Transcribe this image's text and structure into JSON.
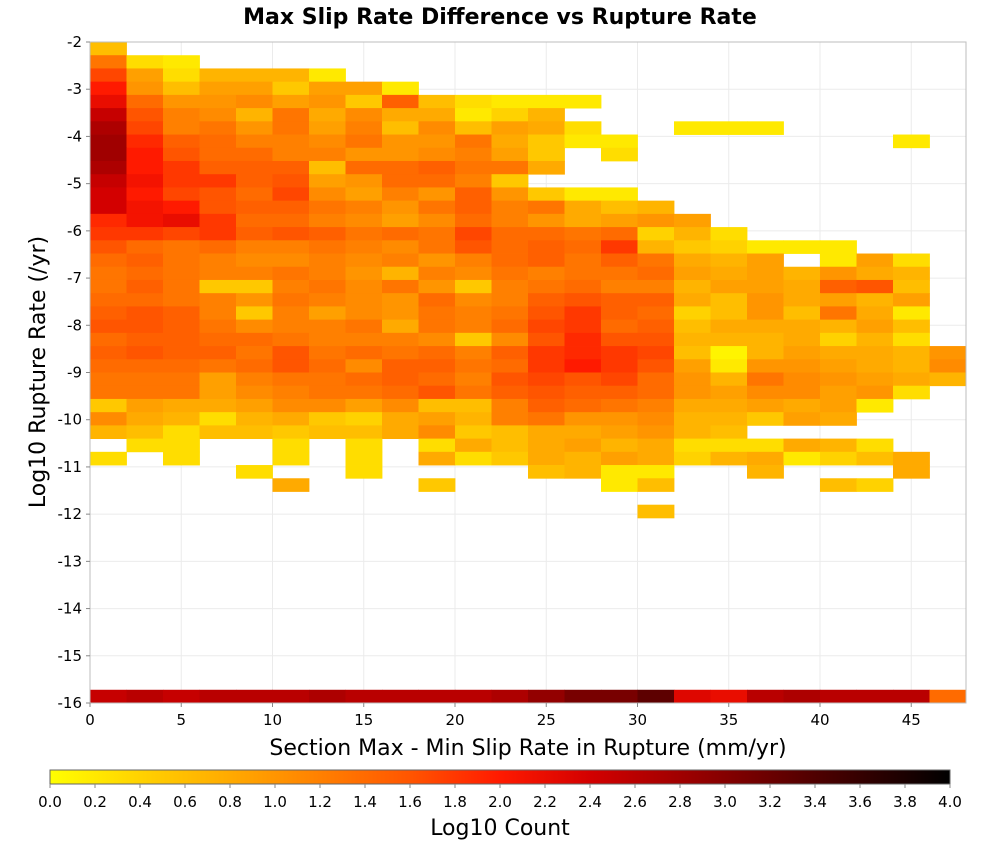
{
  "chart_data": {
    "type": "heatmap",
    "title": "Max Slip Rate Difference vs Rupture Rate",
    "xlabel": "Section Max - Min Slip Rate in Rupture (mm/yr)",
    "ylabel": "Log10 Rupture Rate (/yr)",
    "xlim": [
      0,
      48
    ],
    "ylim": [
      -16,
      -2
    ],
    "xticks": [
      0,
      5,
      10,
      15,
      20,
      25,
      30,
      35,
      40,
      45
    ],
    "yticks": [
      -2,
      -3,
      -4,
      -5,
      -6,
      -7,
      -8,
      -9,
      -10,
      -11,
      -12,
      -13,
      -14,
      -15,
      -16
    ],
    "x_bin_width": 2,
    "y_bin_width": 0.28,
    "y_bin_start": -2,
    "grid": true,
    "colorbar": {
      "label": "Log10 Count",
      "min": 0,
      "max": 4,
      "ticks": [
        "0.0",
        "0.2",
        "0.4",
        "0.6",
        "0.8",
        "1.0",
        "1.2",
        "1.4",
        "1.6",
        "1.8",
        "2.0",
        "2.2",
        "2.4",
        "2.6",
        "2.8",
        "3.0",
        "3.2",
        "3.4",
        "3.6",
        "3.8",
        "4.0"
      ],
      "colormap": "hot-reversed",
      "position": "bottom"
    },
    "rows": [
      [
        0.6
      ],
      [
        1.3,
        0.3,
        0.2
      ],
      [
        1.7,
        0.9,
        0.3,
        0.7,
        0.7,
        0.7,
        0.2
      ],
      [
        2.0,
        1.0,
        0.6,
        0.9,
        0.9,
        0.5,
        0.9,
        0.9,
        0.2
      ],
      [
        2.2,
        1.4,
        1.0,
        1.0,
        1.1,
        0.9,
        1.0,
        0.5,
        1.5,
        0.6,
        0.3,
        0.2,
        0.2,
        0.2
      ],
      [
        2.5,
        1.6,
        1.2,
        1.1,
        0.7,
        1.3,
        0.8,
        1.1,
        0.8,
        0.8,
        0.2,
        0.4,
        0.7
      ],
      [
        2.7,
        1.7,
        1.2,
        1.3,
        1.0,
        1.3,
        0.9,
        1.2,
        0.6,
        1.1,
        0.6,
        0.9,
        0.8,
        0.3,
        0.0,
        0,
        0.2,
        0.2,
        0.2
      ],
      [
        2.8,
        1.9,
        1.5,
        1.4,
        1.2,
        1.2,
        1.1,
        1.3,
        1.0,
        1.0,
        1.3,
        0.8,
        0.5,
        0.2,
        0.2,
        0,
        0,
        0,
        0,
        0,
        0,
        0,
        0.2
      ],
      [
        2.8,
        2.0,
        1.6,
        1.4,
        1.4,
        1.2,
        1.2,
        1.0,
        1.0,
        1.1,
        1.2,
        0.9,
        0.5,
        0.0,
        0.3
      ],
      [
        2.7,
        2.0,
        1.8,
        1.5,
        1.5,
        1.5,
        0.6,
        1.4,
        1.4,
        1.5,
        1.3,
        1.3,
        0.8
      ],
      [
        2.5,
        2.1,
        1.8,
        1.8,
        1.5,
        1.6,
        0.9,
        1.0,
        1.4,
        1.4,
        1.2,
        0.5
      ],
      [
        2.4,
        2.0,
        1.7,
        1.6,
        1.4,
        1.7,
        1.1,
        0.9,
        1.2,
        1.0,
        1.5,
        1.0,
        0.5,
        0.2,
        0.2
      ],
      [
        2.4,
        2.1,
        2.0,
        1.6,
        1.5,
        1.5,
        1.3,
        1.2,
        1.0,
        1.3,
        1.5,
        1.2,
        1.3,
        0.8,
        0.6,
        0.7
      ],
      [
        1.9,
        2.1,
        2.2,
        1.8,
        1.4,
        1.4,
        1.2,
        1.1,
        0.9,
        1.1,
        1.4,
        1.2,
        1.0,
        0.8,
        0.9,
        1.0,
        0.9
      ],
      [
        1.8,
        1.8,
        1.7,
        1.8,
        1.5,
        1.6,
        1.5,
        1.3,
        1.4,
        1.3,
        1.7,
        1.4,
        1.4,
        1.3,
        1.4,
        0.4,
        0.7,
        0.3
      ],
      [
        1.6,
        1.4,
        1.3,
        1.4,
        1.2,
        1.2,
        1.3,
        1.2,
        1.1,
        1.3,
        1.6,
        1.4,
        1.5,
        1.4,
        1.8,
        0.7,
        0.5,
        0.4,
        0.2,
        0.2,
        0.2
      ],
      [
        1.4,
        1.5,
        1.3,
        1.2,
        1.1,
        1.1,
        1.2,
        1.1,
        1.2,
        1.0,
        1.2,
        1.4,
        1.5,
        1.3,
        1.5,
        1.3,
        0.8,
        0.7,
        0.9,
        0,
        0.2,
        0.9,
        0.3
      ],
      [
        1.3,
        1.4,
        1.3,
        1.2,
        1.2,
        1.3,
        1.2,
        1.0,
        0.7,
        1.2,
        1.1,
        1.3,
        1.2,
        1.3,
        1.3,
        1.4,
        0.9,
        0.8,
        0.9,
        0.7,
        1.0,
        0.8,
        0.7
      ],
      [
        1.3,
        1.5,
        1.3,
        0.5,
        0.5,
        1.2,
        1.3,
        1.1,
        1.3,
        1.0,
        0.5,
        1.2,
        1.3,
        1.4,
        1.2,
        1.2,
        0.7,
        0.9,
        0.9,
        0.8,
        1.5,
        1.6,
        0.6
      ],
      [
        1.4,
        1.4,
        1.3,
        1.2,
        1.0,
        1.3,
        1.2,
        1.1,
        1.0,
        1.4,
        1.1,
        1.2,
        1.5,
        1.6,
        1.5,
        1.5,
        0.8,
        0.6,
        1.0,
        0.8,
        0.9,
        0.7,
        0.9
      ],
      [
        1.5,
        1.6,
        1.5,
        1.2,
        0.5,
        1.2,
        0.9,
        1.1,
        1.0,
        1.3,
        1.2,
        1.3,
        1.6,
        1.8,
        1.5,
        1.4,
        0.4,
        0.6,
        1.0,
        0.6,
        1.3,
        0.8,
        0.2
      ],
      [
        1.6,
        1.6,
        1.5,
        1.3,
        1.1,
        1.2,
        1.2,
        1.3,
        0.8,
        1.3,
        1.2,
        1.4,
        1.7,
        1.8,
        1.4,
        1.5,
        0.6,
        0.8,
        0.8,
        0.8,
        0.7,
        0.9,
        0.6
      ],
      [
        1.4,
        1.5,
        1.5,
        1.4,
        1.4,
        1.3,
        1.2,
        1.2,
        1.2,
        1.1,
        0.5,
        1.1,
        1.6,
        1.9,
        1.6,
        1.6,
        0.7,
        0.7,
        0.7,
        0.8,
        0.4,
        0.7,
        0.3
      ],
      [
        1.5,
        1.6,
        1.5,
        1.5,
        1.3,
        1.6,
        1.3,
        1.4,
        1.3,
        1.4,
        1.2,
        1.5,
        1.8,
        1.9,
        1.8,
        1.7,
        0.6,
        0.1,
        0.7,
        0.9,
        0.8,
        0.8,
        0.7,
        1.0
      ],
      [
        1.4,
        1.4,
        1.4,
        1.3,
        1.4,
        1.6,
        1.4,
        1.1,
        1.5,
        1.5,
        1.3,
        1.4,
        1.8,
        2.0,
        1.8,
        1.6,
        0.9,
        0.2,
        1.0,
        1.0,
        0.9,
        0.8,
        0.7,
        1.1
      ],
      [
        1.3,
        1.3,
        1.3,
        0.9,
        1.2,
        1.3,
        1.3,
        1.4,
        1.5,
        1.4,
        1.2,
        1.6,
        1.7,
        1.6,
        1.7,
        1.4,
        1.0,
        0.7,
        1.3,
        1.1,
        1.0,
        0.9,
        0.8,
        0.7
      ],
      [
        1.3,
        1.3,
        1.3,
        0.9,
        1.1,
        1.2,
        1.3,
        1.3,
        1.4,
        1.6,
        1.3,
        1.5,
        1.6,
        1.5,
        1.5,
        1.4,
        1.0,
        0.9,
        1.1,
        1.1,
        0.9,
        1.0,
        0.3
      ],
      [
        0.5,
        0.9,
        0.8,
        0.8,
        0.9,
        1.1,
        1.1,
        0.9,
        1.1,
        0.6,
        0.6,
        1.2,
        1.5,
        1.4,
        1.3,
        1.2,
        0.8,
        0.8,
        0.9,
        0.8,
        0.9,
        0.2
      ],
      [
        1.1,
        0.8,
        0.7,
        0.3,
        0.7,
        0.8,
        0.5,
        0.4,
        0.8,
        0.9,
        0.7,
        1.2,
        1.3,
        1.0,
        1.0,
        1.1,
        0.7,
        0.7,
        0.5,
        0.9,
        0.8
      ],
      [
        0.7,
        0.6,
        0.3,
        0.6,
        0.6,
        0.5,
        0.6,
        0.6,
        0.8,
        1.1,
        0.5,
        0.6,
        0.8,
        0.8,
        0.9,
        1.0,
        0.7,
        0.6
      ],
      [
        0,
        0.3,
        0.3,
        0,
        0,
        0.3,
        0,
        0.3,
        0,
        0.3,
        0.8,
        0.6,
        0.8,
        0.9,
        0.7,
        0.8,
        0.3,
        0.3,
        0.3,
        0.8,
        0.7,
        0.3
      ],
      [
        0.3,
        0,
        0.3,
        0,
        0,
        0.3,
        0,
        0.3,
        0,
        0.8,
        0.3,
        0.5,
        0.8,
        0.7,
        0.9,
        0.8,
        0.4,
        0.7,
        0.8,
        0.2,
        0.4,
        0.6,
        0.8
      ],
      [
        0,
        0,
        0,
        0,
        0.3,
        0,
        0,
        0.3,
        0,
        0,
        0,
        0,
        0.6,
        0.7,
        0.2,
        0.2,
        0,
        0,
        0.7,
        0,
        0,
        0,
        0.8
      ],
      [
        0,
        0,
        0,
        0,
        0,
        0.8,
        0,
        0,
        0,
        0.5,
        0,
        0,
        0,
        0,
        0.2,
        0.6,
        0,
        0,
        0,
        0,
        0.6,
        0.4
      ],
      [],
      [
        0,
        0,
        0,
        0,
        0,
        0,
        0,
        0,
        0,
        0,
        0,
        0,
        0,
        0,
        0,
        0.6
      ],
      [],
      [],
      [],
      [],
      [],
      [],
      [],
      [],
      [],
      [],
      [],
      [],
      [],
      [
        2.5,
        2.6,
        2.5,
        2.6,
        2.6,
        2.6,
        2.7,
        2.6,
        2.6,
        2.6,
        2.6,
        2.7,
        2.9,
        3.1,
        3.1,
        3.3,
        2.3,
        2.2,
        2.6,
        2.7,
        2.6,
        2.6,
        2.6,
        1.4
      ]
    ]
  }
}
